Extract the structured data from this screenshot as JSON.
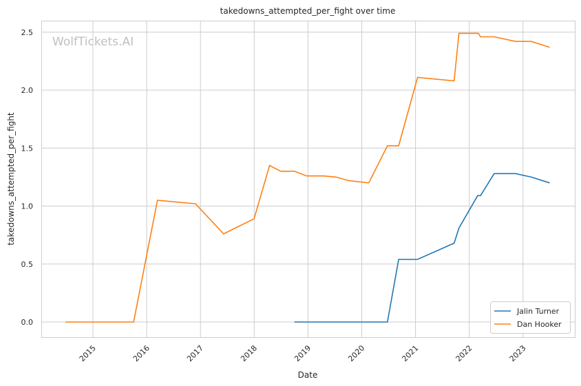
{
  "chart_data": {
    "type": "line",
    "title": "takedowns_attempted_per_fight over time",
    "xlabel": "Date",
    "ylabel": "takedowns_attempted_per_fight",
    "watermark": "WolfTickets.AI",
    "xticks": [
      "2015",
      "2016",
      "2017",
      "2018",
      "2019",
      "2020",
      "2021",
      "2022",
      "2023"
    ],
    "yticks": [
      "0.0",
      "0.5",
      "1.0",
      "1.5",
      "2.0",
      "2.5"
    ],
    "ylim": [
      -0.12,
      2.62
    ],
    "xlim": [
      "2014-01-20",
      "2023-12-20"
    ],
    "grid": true,
    "legend_placement": "lower-right",
    "series": [
      {
        "name": "Jalin Turner",
        "color": "#1f77b4",
        "x": [
          "2018-10-01",
          "2020-06-24",
          "2020-09-08",
          "2021-01-15",
          "2021-09-20",
          "2021-10-23",
          "2022-02-27",
          "2022-03-18",
          "2022-06-19",
          "2022-11-11",
          "2023-02-26",
          "2023-07-01"
        ],
        "y": [
          0,
          0,
          0.54,
          0.54,
          0.68,
          0.81,
          1.09,
          1.09,
          1.28,
          1.28,
          1.25,
          1.2
        ]
      },
      {
        "name": "Dan Hooker",
        "color": "#ff7f0e",
        "x": [
          "2014-06-28",
          "2015-10-04",
          "2016-03-14",
          "2016-11-28",
          "2017-06-07",
          "2017-12-31",
          "2018-04-15",
          "2018-07-01",
          "2018-10-01",
          "2018-12-24",
          "2019-04-16",
          "2019-07-12",
          "2019-10-01",
          "2020-02-18",
          "2020-06-24",
          "2020-09-08",
          "2021-01-15",
          "2021-09-20",
          "2021-10-23",
          "2022-03-04",
          "2022-03-18",
          "2022-06-19",
          "2022-11-11",
          "2023-02-26",
          "2023-07-01"
        ],
        "y": [
          0,
          0,
          1.05,
          1.02,
          0.76,
          0.89,
          1.35,
          1.3,
          1.3,
          1.26,
          1.26,
          1.25,
          1.22,
          1.2,
          1.52,
          1.52,
          2.11,
          2.08,
          2.49,
          2.49,
          2.46,
          2.46,
          2.42,
          2.42,
          2.37
        ]
      }
    ]
  }
}
